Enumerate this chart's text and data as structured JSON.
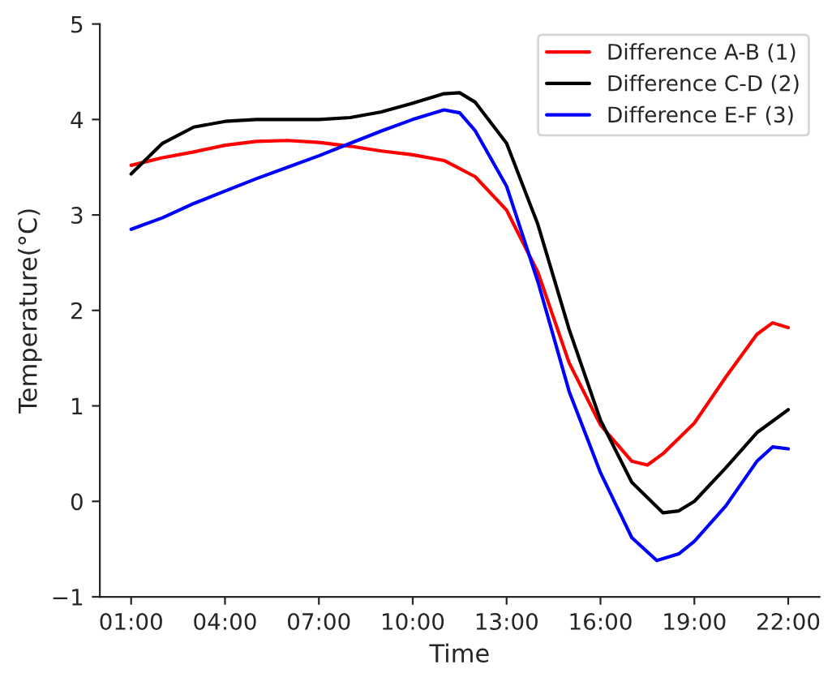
{
  "chart_data": {
    "type": "line",
    "xlabel": "Time",
    "ylabel": "Temperature(°C)",
    "xlim": [
      0,
      23
    ],
    "xticks": [
      {
        "value": 1,
        "label": "01:00"
      },
      {
        "value": 4,
        "label": "04:00"
      },
      {
        "value": 7,
        "label": "07:00"
      },
      {
        "value": 10,
        "label": "10:00"
      },
      {
        "value": 13,
        "label": "13:00"
      },
      {
        "value": 16,
        "label": "16:00"
      },
      {
        "value": 19,
        "label": "19:00"
      },
      {
        "value": 22,
        "label": "22:00"
      }
    ],
    "ylim": [
      -1,
      5
    ],
    "yticks": [
      {
        "value": -1,
        "label": "−1"
      },
      0,
      1,
      2,
      3,
      4,
      5
    ],
    "grid": false,
    "legend": "top right",
    "line_style": "solid",
    "marker": "none",
    "series": [
      {
        "name": "Difference A-B (1)",
        "color": "#ff0000",
        "x": [
          1,
          2,
          3,
          4,
          5,
          6,
          7,
          8,
          9,
          10,
          11,
          12,
          13,
          14,
          15,
          16,
          17,
          17.5,
          18,
          19,
          20,
          21,
          21.5,
          22
        ],
        "values": [
          3.52,
          3.6,
          3.66,
          3.73,
          3.77,
          3.78,
          3.76,
          3.72,
          3.67,
          3.63,
          3.57,
          3.4,
          3.05,
          2.4,
          1.45,
          0.8,
          0.42,
          0.38,
          0.5,
          0.82,
          1.3,
          1.75,
          1.87,
          1.82
        ]
      },
      {
        "name": "Difference C-D (2)",
        "color": "#000000",
        "x": [
          1,
          2,
          3,
          4,
          5,
          6,
          7,
          8,
          9,
          10,
          11,
          11.5,
          12,
          13,
          14,
          15,
          16,
          17,
          18,
          18.5,
          19,
          20,
          21,
          22
        ],
        "values": [
          3.43,
          3.75,
          3.92,
          3.98,
          4.0,
          4.0,
          4.0,
          4.02,
          4.08,
          4.17,
          4.27,
          4.28,
          4.18,
          3.75,
          2.9,
          1.8,
          0.85,
          0.2,
          -0.12,
          -0.1,
          0.0,
          0.35,
          0.72,
          0.96
        ]
      },
      {
        "name": "Difference E-F (3)",
        "color": "#0000ff",
        "x": [
          1,
          2,
          3,
          4,
          5,
          6,
          7,
          8,
          9,
          10,
          11,
          11.5,
          12,
          13,
          14,
          15,
          16,
          17,
          17.8,
          18.5,
          19,
          20,
          21,
          21.5,
          22
        ],
        "values": [
          2.85,
          2.97,
          3.12,
          3.25,
          3.38,
          3.5,
          3.62,
          3.75,
          3.88,
          4.0,
          4.1,
          4.07,
          3.88,
          3.3,
          2.3,
          1.15,
          0.3,
          -0.38,
          -0.62,
          -0.55,
          -0.42,
          -0.05,
          0.42,
          0.57,
          0.55
        ]
      }
    ]
  }
}
